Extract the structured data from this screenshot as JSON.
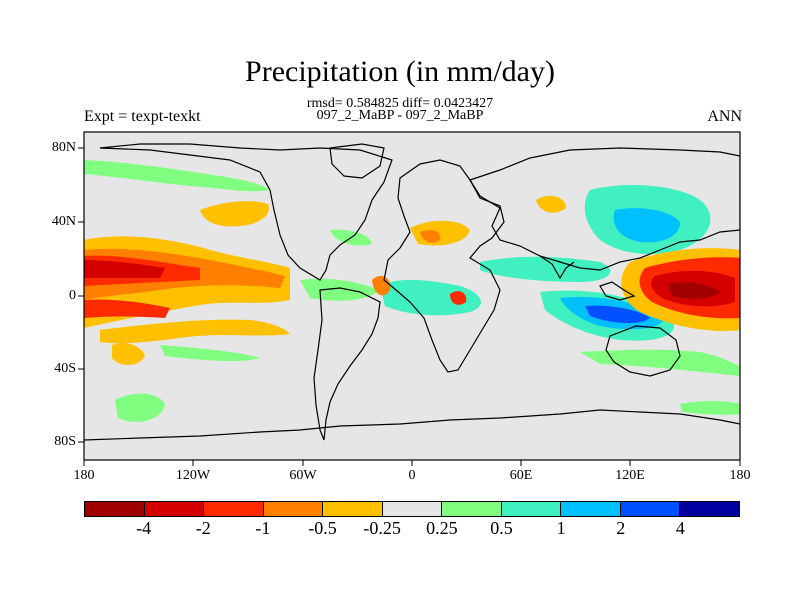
{
  "title": "Precipitation (in mm/day)",
  "stats_line": "rmsd= 0.584825 diff= 0.0423427",
  "case_line": "097_2_MaBP - 097_2_MaBP",
  "experiment_label": "Expt = texpt-texkt",
  "season_label": "ANN",
  "map": {
    "background_color": "#e6e6e6",
    "lat_labels": [
      "80N",
      "40N",
      "0",
      "40S",
      "80S"
    ],
    "lon_labels": [
      "180",
      "120W",
      "60W",
      "0",
      "60E",
      "120E",
      "180"
    ]
  },
  "colorbar": {
    "colors": [
      "#a00000",
      "#d40000",
      "#ff2a00",
      "#ff8000",
      "#ffc000",
      "#e6e6e6",
      "#80ff80",
      "#40f0c0",
      "#00c0ff",
      "#0050ff",
      "#0000a0"
    ],
    "labels": [
      "-4",
      "-2",
      "-1",
      "-0.5",
      "-0.25",
      "0.25",
      "0.5",
      "1",
      "2",
      "4"
    ]
  }
}
